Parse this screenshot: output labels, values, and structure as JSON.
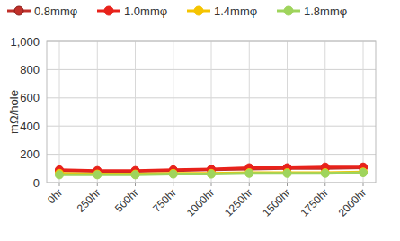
{
  "chart_data": {
    "type": "line",
    "y_label": "mΩ/hole",
    "categories": [
      "0hr",
      "250hr",
      "500hr",
      "750hr",
      "1000hr",
      "1250hr",
      "1500hr",
      "1750hr",
      "2000hr"
    ],
    "series": [
      {
        "name": "0.8mmφ",
        "color": "#c0302a",
        "marker": "circle",
        "line_style": "solid",
        "values": [
          85,
          80,
          80,
          85,
          90,
          95,
          100,
          100,
          105
        ]
      },
      {
        "name": "1.0mmφ",
        "color": "#e8221b",
        "marker": "circle",
        "line_style": "solid",
        "values": [
          90,
          85,
          85,
          90,
          95,
          105,
          105,
          110,
          110
        ]
      },
      {
        "name": "1.4mmφ",
        "color": "#f5c400",
        "marker": "circle",
        "line_style": "solid",
        "values": [
          65,
          60,
          60,
          65,
          65,
          70,
          70,
          70,
          75
        ]
      },
      {
        "name": "1.8mmφ",
        "color": "#9fd45c",
        "marker": "circle",
        "line_style": "solid",
        "values": [
          55,
          55,
          55,
          60,
          60,
          65,
          65,
          65,
          70
        ]
      }
    ],
    "ylim": [
      0,
      1000
    ],
    "yticks": [
      0,
      200,
      400,
      600,
      800,
      {
        "value": 1000,
        "label": "1,000"
      }
    ],
    "grid": true,
    "legend": "top"
  }
}
